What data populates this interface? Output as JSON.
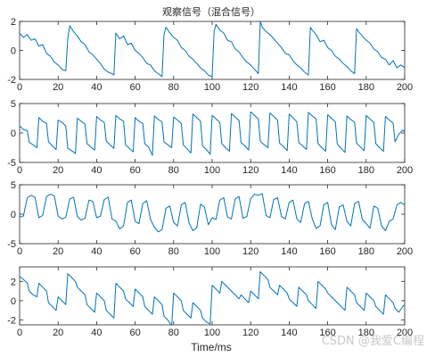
{
  "figure": {
    "title": "观察信号（混合信号）",
    "xlabel": "Time/ms",
    "watermark": "CSDN @我爱C编程",
    "line_color": "#0072bd"
  },
  "chart_data": [
    {
      "type": "line",
      "title": "观察信号（混合信号）",
      "xlim": [
        0,
        200
      ],
      "ylim": [
        -2,
        2
      ],
      "xticks": [
        0,
        20,
        40,
        60,
        80,
        100,
        120,
        140,
        160,
        180,
        200
      ],
      "yticks": [
        -2,
        0,
        2
      ],
      "series": [
        {
          "x": [
            0,
            2,
            4,
            6,
            8,
            10,
            12,
            14,
            16,
            18,
            20,
            22,
            24,
            25,
            26,
            28,
            30,
            32,
            34,
            36,
            38,
            40,
            42,
            44,
            46,
            48,
            49,
            50,
            52,
            54,
            56,
            58,
            60,
            62,
            64,
            66,
            68,
            70,
            72,
            74,
            75,
            76,
            78,
            80,
            82,
            84,
            86,
            88,
            90,
            92,
            94,
            96,
            98,
            100,
            101,
            102,
            104,
            106,
            108,
            110,
            112,
            114,
            116,
            118,
            120,
            122,
            124,
            125,
            126,
            128,
            130,
            132,
            134,
            136,
            138,
            140,
            142,
            144,
            146,
            148,
            150,
            151,
            152,
            154,
            156,
            158,
            160,
            162,
            164,
            166,
            168,
            170,
            172,
            174,
            175,
            176,
            178,
            180,
            182,
            184,
            186,
            188,
            190,
            192,
            194,
            196,
            198,
            200
          ],
          "y": [
            1.2,
            0.9,
            1.1,
            0.7,
            0.8,
            0.3,
            0.4,
            -0.2,
            -0.4,
            -0.8,
            -1.0,
            -1.3,
            -1.4,
            0.8,
            1.7,
            1.3,
            1.0,
            0.6,
            0.4,
            -0.1,
            -0.3,
            -0.6,
            -0.9,
            -1.3,
            -1.5,
            -1.6,
            -1.7,
            1.2,
            0.8,
            1.0,
            0.4,
            0.5,
            0.0,
            -0.2,
            -0.5,
            -0.9,
            -1.0,
            -1.4,
            -1.6,
            -1.8,
            1.1,
            1.6,
            1.2,
            0.9,
            0.7,
            0.2,
            0.0,
            -0.4,
            -0.6,
            -0.9,
            -1.2,
            -1.4,
            -1.7,
            -1.8,
            1.3,
            1.8,
            1.4,
            1.2,
            0.7,
            0.6,
            0.1,
            -0.1,
            -0.5,
            -0.8,
            -1.0,
            -1.3,
            -1.6,
            2.0,
            1.6,
            1.3,
            1.1,
            0.8,
            0.5,
            0.2,
            -0.2,
            -0.3,
            -0.7,
            -1.0,
            -1.2,
            -1.5,
            -1.7,
            1.6,
            1.4,
            1.1,
            0.6,
            0.7,
            0.2,
            0.0,
            -0.4,
            -0.6,
            -0.9,
            -1.1,
            -1.4,
            -1.6,
            1.5,
            1.3,
            1.0,
            0.7,
            0.5,
            0.1,
            -0.1,
            -0.5,
            -0.6,
            -1.0,
            -0.7,
            -1.2,
            -1.0,
            -1.2
          ]
        }
      ]
    },
    {
      "type": "line",
      "xlim": [
        0,
        200
      ],
      "ylim": [
        -5,
        5
      ],
      "xticks": [
        0,
        20,
        40,
        60,
        80,
        100,
        120,
        140,
        160,
        180,
        200
      ],
      "yticks": [
        -5,
        0,
        5
      ],
      "series": [
        {
          "x": [
            0,
            2,
            4,
            5,
            7,
            9,
            10,
            12,
            14,
            15,
            17,
            19,
            20,
            22,
            24,
            25,
            27,
            29,
            30,
            32,
            34,
            35,
            37,
            39,
            40,
            42,
            44,
            45,
            47,
            49,
            50,
            52,
            54,
            55,
            57,
            59,
            60,
            62,
            64,
            65,
            67,
            69,
            70,
            72,
            74,
            75,
            77,
            79,
            80,
            82,
            84,
            85,
            87,
            89,
            90,
            92,
            94,
            95,
            97,
            99,
            100,
            102,
            104,
            105,
            107,
            109,
            110,
            112,
            114,
            115,
            117,
            119,
            120,
            122,
            124,
            125,
            127,
            129,
            130,
            132,
            134,
            135,
            137,
            139,
            140,
            142,
            144,
            145,
            147,
            149,
            150,
            152,
            154,
            155,
            157,
            159,
            160,
            162,
            164,
            165,
            167,
            169,
            170,
            172,
            174,
            175,
            177,
            179,
            180,
            182,
            184,
            185,
            187,
            189,
            190,
            192,
            194,
            195,
            197,
            199,
            200
          ],
          "y": [
            1.2,
            0.6,
            0.4,
            -1.6,
            -2.0,
            -2.5,
            2.6,
            2.0,
            1.6,
            -1.5,
            -2.2,
            -2.8,
            2.2,
            1.8,
            1.2,
            -2.6,
            -3.0,
            -3.5,
            2.5,
            2.0,
            1.5,
            -1.8,
            -2.4,
            -2.9,
            2.8,
            2.2,
            1.8,
            -1.4,
            -2.0,
            -2.6,
            3.0,
            2.4,
            2.0,
            -2.0,
            -2.6,
            -3.2,
            2.6,
            2.0,
            1.6,
            -1.8,
            -2.4,
            -3.8,
            2.9,
            2.3,
            1.9,
            -1.5,
            -2.0,
            -2.5,
            2.7,
            2.2,
            1.6,
            -2.0,
            -2.7,
            -3.4,
            3.2,
            2.6,
            2.0,
            -2.2,
            -2.8,
            -3.6,
            3.0,
            2.4,
            1.8,
            -1.8,
            -2.5,
            -3.1,
            3.3,
            2.7,
            2.1,
            -1.6,
            -2.2,
            -2.9,
            3.6,
            3.0,
            2.4,
            -1.4,
            -2.0,
            -2.5,
            3.4,
            2.8,
            2.2,
            -1.7,
            -2.3,
            -3.0,
            3.2,
            2.6,
            1.9,
            -1.6,
            -2.2,
            -2.8,
            3.5,
            2.9,
            2.4,
            -1.8,
            -2.5,
            -3.1,
            3.1,
            2.5,
            1.9,
            -1.9,
            -2.6,
            -3.3,
            2.9,
            2.3,
            1.8,
            -1.7,
            -2.4,
            -3.0,
            3.0,
            2.4,
            1.8,
            -1.8,
            -2.5,
            -3.1,
            2.8,
            2.2,
            1.7,
            -1.5,
            -0.2,
            0.5,
            0.2
          ]
        }
      ]
    },
    {
      "type": "line",
      "xlim": [
        0,
        200
      ],
      "ylim": [
        -5,
        5
      ],
      "xticks": [
        0,
        20,
        40,
        60,
        80,
        100,
        120,
        140,
        160,
        180,
        200
      ],
      "yticks": [
        -5,
        0,
        5
      ],
      "series": [
        {
          "x": [
            0,
            2,
            4,
            6,
            8,
            10,
            12,
            14,
            16,
            18,
            20,
            22,
            24,
            26,
            28,
            30,
            32,
            34,
            36,
            38,
            40,
            42,
            44,
            46,
            48,
            50,
            52,
            54,
            56,
            58,
            60,
            62,
            64,
            66,
            68,
            70,
            72,
            74,
            76,
            78,
            80,
            82,
            84,
            86,
            88,
            90,
            92,
            94,
            96,
            98,
            100,
            102,
            104,
            106,
            108,
            110,
            112,
            114,
            116,
            118,
            120,
            122,
            124,
            126,
            128,
            130,
            132,
            134,
            136,
            138,
            140,
            142,
            144,
            146,
            148,
            150,
            152,
            154,
            156,
            158,
            160,
            162,
            164,
            166,
            168,
            170,
            172,
            174,
            176,
            178,
            180,
            182,
            184,
            186,
            188,
            190,
            192,
            194,
            196,
            198,
            200
          ],
          "y": [
            -0.5,
            -0.3,
            2.8,
            3.2,
            2.9,
            -0.6,
            -0.2,
            3.0,
            3.4,
            3.1,
            -0.3,
            -0.8,
            -0.5,
            2.6,
            2.9,
            -0.4,
            -1.0,
            -0.7,
            2.4,
            2.2,
            -0.6,
            -0.3,
            2.5,
            2.9,
            -0.8,
            -1.2,
            -2.5,
            -2.0,
            2.0,
            2.4,
            -1.2,
            -1.6,
            1.8,
            2.3,
            -0.9,
            -2.2,
            -3.0,
            -2.6,
            1.0,
            1.4,
            -1.4,
            -2.0,
            1.6,
            2.0,
            -1.5,
            -2.8,
            -2.3,
            1.7,
            1.2,
            -1.8,
            -0.6,
            -0.9,
            2.4,
            2.8,
            -0.5,
            -0.8,
            2.6,
            3.0,
            -0.7,
            -0.4,
            2.6,
            3.4,
            3.2,
            3.5,
            -0.2,
            -0.6,
            2.5,
            2.8,
            -0.4,
            -0.8,
            2.0,
            2.4,
            -0.8,
            -1.4,
            1.8,
            2.2,
            -0.8,
            -2.4,
            -2.0,
            1.6,
            2.0,
            -1.8,
            -2.6,
            1.2,
            1.6,
            -1.2,
            -2.0,
            1.8,
            2.2,
            -0.9,
            -1.6,
            -2.4,
            1.4,
            1.0,
            -2.0,
            -2.8,
            -1.2,
            -0.8,
            1.6,
            2.0,
            1.6
          ]
        }
      ]
    },
    {
      "type": "line",
      "xlim": [
        0,
        200
      ],
      "ylim": [
        -2.5,
        3.5
      ],
      "xticks": [
        0,
        20,
        40,
        60,
        80,
        100,
        120,
        140,
        160,
        180,
        200
      ],
      "yticks": [
        -2,
        0,
        2
      ],
      "series": [
        {
          "x": [
            0,
            2,
            4,
            5,
            7,
            9,
            10,
            12,
            14,
            15,
            17,
            19,
            20,
            22,
            24,
            25,
            27,
            29,
            30,
            32,
            34,
            35,
            37,
            39,
            40,
            42,
            44,
            45,
            47,
            49,
            50,
            52,
            54,
            55,
            57,
            59,
            60,
            62,
            64,
            65,
            67,
            69,
            70,
            72,
            74,
            75,
            77,
            79,
            80,
            82,
            84,
            85,
            87,
            89,
            90,
            92,
            94,
            95,
            97,
            99,
            100,
            102,
            104,
            105,
            107,
            109,
            110,
            112,
            114,
            115,
            117,
            119,
            120,
            122,
            124,
            125,
            127,
            129,
            130,
            132,
            134,
            135,
            137,
            139,
            140,
            142,
            144,
            145,
            147,
            149,
            150,
            152,
            154,
            155,
            157,
            159,
            160,
            162,
            164,
            165,
            167,
            169,
            170,
            172,
            174,
            175,
            177,
            179,
            180,
            182,
            184,
            185,
            187,
            189,
            190,
            192,
            194,
            195,
            197,
            199,
            200
          ],
          "y": [
            2.5,
            2.2,
            1.8,
            1.0,
            0.6,
            0.4,
            1.8,
            1.4,
            1.0,
            -0.2,
            -0.6,
            -1.0,
            0.4,
            0.0,
            -0.4,
            2.8,
            2.4,
            2.0,
            1.4,
            1.0,
            0.6,
            -0.4,
            -0.8,
            -1.2,
            0.8,
            0.4,
            0.0,
            -1.0,
            -1.4,
            -1.8,
            1.8,
            1.4,
            1.0,
            0.2,
            -0.2,
            -0.6,
            1.2,
            0.8,
            0.4,
            -0.6,
            -1.0,
            -1.4,
            0.4,
            0.0,
            -0.4,
            -1.6,
            -2.0,
            -2.6,
            0.8,
            0.4,
            0.0,
            -1.0,
            -1.4,
            -1.8,
            -0.2,
            -0.6,
            -1.0,
            -1.8,
            -2.2,
            -2.4,
            1.6,
            1.2,
            0.8,
            2.0,
            1.6,
            1.2,
            1.0,
            0.6,
            0.2,
            0.6,
            0.2,
            -0.2,
            1.0,
            0.6,
            0.2,
            3.0,
            2.6,
            2.2,
            1.4,
            1.0,
            0.6,
            1.6,
            1.2,
            0.8,
            0.2,
            -0.2,
            -0.6,
            1.4,
            1.0,
            0.6,
            0.0,
            -0.4,
            -0.8,
            2.0,
            1.6,
            1.2,
            0.8,
            0.4,
            0.0,
            -0.2,
            -0.6,
            -1.0,
            1.4,
            1.0,
            0.6,
            -0.2,
            -0.6,
            -1.0,
            0.8,
            0.4,
            0.0,
            -0.6,
            -1.0,
            -1.4,
            0.6,
            0.2,
            -0.2,
            -0.8,
            -1.2,
            -0.6,
            -0.4
          ]
        }
      ]
    }
  ]
}
